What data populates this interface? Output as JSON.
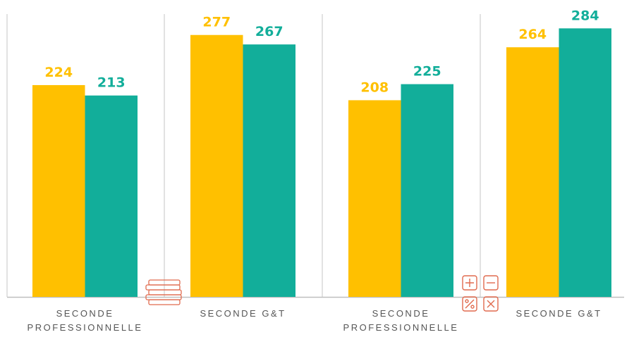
{
  "chart_data": {
    "type": "bar",
    "categories": [
      "SECONDE PROFESSIONNELLE",
      "SECONDE G&T",
      "SECONDE PROFESSIONNELLE",
      "SECONDE G&T"
    ],
    "series": [
      {
        "color": "#FFC000",
        "values": [
          224,
          277,
          208,
          264
        ]
      },
      {
        "color": "#12AE9A",
        "values": [
          213,
          267,
          225,
          284
        ]
      }
    ],
    "ylim": [
      0,
      314
    ]
  }
}
